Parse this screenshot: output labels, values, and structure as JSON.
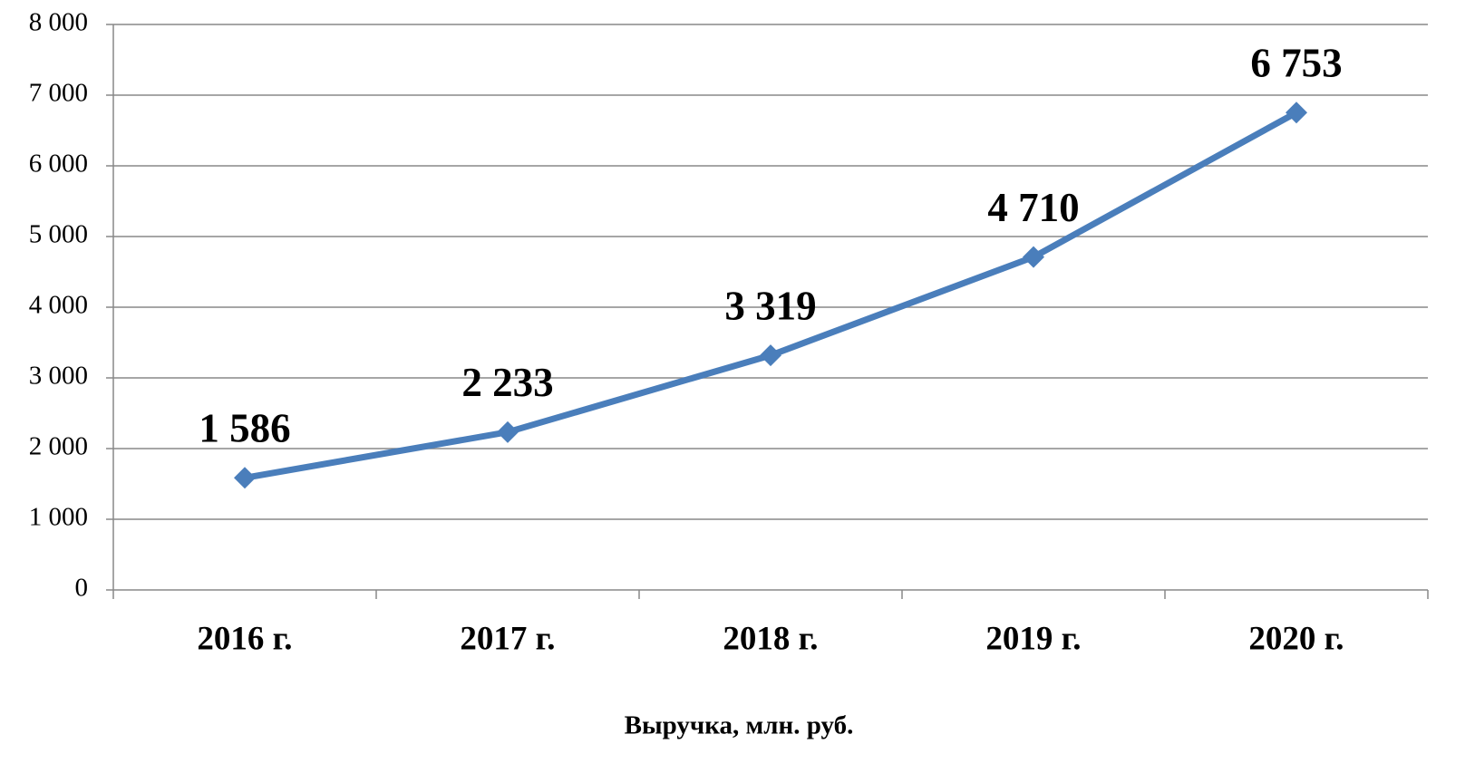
{
  "chart_data": {
    "type": "line",
    "categories": [
      "2016 г.",
      "2017 г.",
      "2018 г.",
      "2019 г.",
      "2020 г."
    ],
    "series": [
      {
        "name": "Выручка, млн. руб.",
        "color": "#4a7ebb",
        "values": [
          1586,
          2233,
          3319,
          4710,
          6753
        ],
        "value_labels": [
          "1 586",
          "2 233",
          "3 319",
          "4 710",
          "6 753"
        ]
      }
    ],
    "ylim": [
      0,
      8000
    ],
    "yticks": [
      0,
      {
        "value": 1000,
        "label": "1 000"
      },
      {
        "value": 2000,
        "label": "2 000"
      },
      {
        "value": 3000,
        "label": "3 000"
      },
      {
        "value": 4000,
        "label": "4 000"
      },
      {
        "value": 5000,
        "label": "5 000"
      },
      {
        "value": 6000,
        "label": "6 000"
      },
      {
        "value": 7000,
        "label": "7 000"
      },
      {
        "value": 8000,
        "label": "8 000"
      }
    ],
    "grid": true,
    "legend": "bottom"
  }
}
